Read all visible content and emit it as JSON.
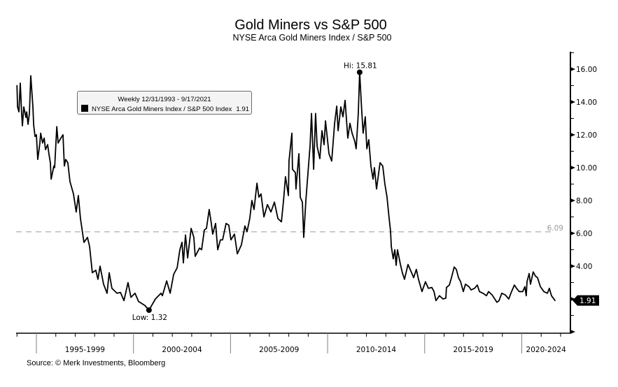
{
  "legend": {
    "period": "Weekly 12/31/1993 - 9/17/2021",
    "series_label": "NYSE Arca Gold Miners Index / S&P 500 Index",
    "series_value": "1.91"
  },
  "footer": {
    "source": "Source: © Merk Investments, Bloomberg"
  },
  "colors": {
    "series": "#000000",
    "reference_line": "#9a9a9a",
    "period_separator": "#808080",
    "last_value_tag": "#000000"
  },
  "chart_data": {
    "type": "line",
    "title": "Gold Miners vs S&P 500",
    "subtitle": "NYSE Arca Gold Miners Index / S&P 500",
    "xlabel": "",
    "ylabel": "",
    "y_axis_side": "right",
    "grid": false,
    "legend_position": "top-left",
    "x_range": [
      1993.95,
      2022.5
    ],
    "ylim": [
      0,
      17
    ],
    "y_tick_values": [
      4,
      6,
      8,
      10,
      12,
      14,
      16
    ],
    "y_tick_labels": [
      "4.00",
      "6.00",
      "8.00",
      "10.00",
      "12.00",
      "14.00",
      "16.00"
    ],
    "x_periods": [
      {
        "label": "1995-1999",
        "start": 1995,
        "end": 2000
      },
      {
        "label": "2000-2004",
        "start": 2000,
        "end": 2005
      },
      {
        "label": "2005-2009",
        "start": 2005,
        "end": 2010
      },
      {
        "label": "2010-2014",
        "start": 2010,
        "end": 2015
      },
      {
        "label": "2015-2019",
        "start": 2015,
        "end": 2020
      },
      {
        "label": "2020-2024",
        "start": 2020,
        "end": 2025
      }
    ],
    "reference_line": {
      "value": 6.09,
      "label": "6.09",
      "style": "dashed"
    },
    "annotations": [
      {
        "kind": "high",
        "label": "Hi: 15.81",
        "x": 2011.65,
        "y": 15.81
      },
      {
        "kind": "low",
        "label": "Low: 1.32",
        "x": 2000.8,
        "y": 1.32
      }
    ],
    "last_value": {
      "value": 1.91,
      "label": "1.91"
    },
    "series": [
      {
        "name": "NYSE Arca Gold Miners Index / S&P 500 Index",
        "x": [
          1994.0,
          1994.03,
          1994.1,
          1994.17,
          1994.24,
          1994.28,
          1994.35,
          1994.46,
          1994.5,
          1994.57,
          1994.64,
          1994.71,
          1994.82,
          1994.86,
          1994.93,
          1995.0,
          1995.07,
          1995.18,
          1995.22,
          1995.32,
          1995.4,
          1995.47,
          1995.58,
          1995.65,
          1995.72,
          1995.76,
          1995.9,
          1995.94,
          1996.05,
          1996.12,
          1996.26,
          1996.37,
          1996.44,
          1996.51,
          1996.62,
          1996.73,
          1996.91,
          1997.05,
          1997.16,
          1997.27,
          1997.45,
          1997.63,
          1997.74,
          1997.88,
          1998.06,
          1998.17,
          1998.28,
          1998.46,
          1998.64,
          1998.75,
          1998.89,
          1999.15,
          1999.33,
          1999.51,
          1999.72,
          1999.87,
          2000.08,
          2000.26,
          2000.59,
          2000.8,
          2001.13,
          2001.42,
          2001.49,
          2001.71,
          2001.89,
          2002.07,
          2002.25,
          2002.39,
          2002.5,
          2002.57,
          2002.68,
          2002.79,
          2002.97,
          2003.11,
          2003.18,
          2003.4,
          2003.51,
          2003.65,
          2003.76,
          2003.9,
          2004.01,
          2004.08,
          2004.23,
          2004.34,
          2004.48,
          2004.59,
          2004.77,
          2004.91,
          2005.02,
          2005.2,
          2005.35,
          2005.56,
          2005.74,
          2005.85,
          2005.99,
          2006.1,
          2006.21,
          2006.36,
          2006.46,
          2006.57,
          2006.72,
          2006.9,
          2007.08,
          2007.26,
          2007.44,
          2007.62,
          2007.73,
          2007.83,
          2007.98,
          2008.01,
          2008.16,
          2008.19,
          2008.34,
          2008.37,
          2008.52,
          2008.59,
          2008.7,
          2008.77,
          2008.88,
          2008.99,
          2009.1,
          2009.17,
          2009.28,
          2009.38,
          2009.46,
          2009.6,
          2009.71,
          2009.82,
          2009.89,
          2010.07,
          2010.21,
          2010.36,
          2010.47,
          2010.54,
          2010.68,
          2010.79,
          2010.9,
          2011.04,
          2011.15,
          2011.26,
          2011.4,
          2011.47,
          2011.58,
          2011.65,
          2011.76,
          2011.83,
          2011.94,
          2012.02,
          2012.12,
          2012.23,
          2012.34,
          2012.41,
          2012.52,
          2012.7,
          2012.84,
          2012.95,
          2013.06,
          2013.17,
          2013.24,
          2013.28,
          2013.38,
          2013.46,
          2013.53,
          2013.6,
          2013.75,
          2013.85,
          2013.96,
          2014.14,
          2014.29,
          2014.43,
          2014.57,
          2014.68,
          2014.86,
          2015.04,
          2015.19,
          2015.37,
          2015.48,
          2015.58,
          2015.76,
          2015.94,
          2016.09,
          2016.12,
          2016.27,
          2016.38,
          2016.52,
          2016.63,
          2016.74,
          2016.85,
          2016.99,
          2017.1,
          2017.28,
          2017.39,
          2017.57,
          2017.71,
          2017.82,
          2018.0,
          2018.18,
          2018.29,
          2018.47,
          2018.61,
          2018.72,
          2018.83,
          2018.97,
          2019.15,
          2019.33,
          2019.44,
          2019.62,
          2019.73,
          2019.87,
          2020.05,
          2020.16,
          2020.23,
          2020.27,
          2020.38,
          2020.45,
          2020.59,
          2020.7,
          2020.81,
          2020.96,
          2021.14,
          2021.32,
          2021.42,
          2021.53,
          2021.71
        ],
        "y": [
          15.0,
          13.7,
          13.4,
          15.15,
          13.3,
          12.55,
          13.7,
          13.06,
          13.4,
          12.64,
          13.3,
          15.6,
          13.7,
          12.6,
          11.9,
          12.0,
          10.5,
          11.5,
          12.1,
          11.5,
          11.8,
          11.1,
          11.4,
          10.8,
          10.3,
          9.3,
          10.1,
          10.0,
          12.5,
          11.5,
          11.8,
          12.0,
          10.1,
          10.5,
          10.3,
          9.15,
          8.4,
          7.3,
          8.3,
          6.9,
          5.45,
          5.75,
          5.2,
          3.6,
          3.75,
          3.2,
          4.0,
          2.9,
          2.35,
          3.6,
          2.65,
          2.35,
          2.4,
          1.9,
          3.0,
          2.1,
          2.35,
          1.85,
          1.6,
          1.32,
          2.0,
          2.35,
          2.2,
          3.1,
          2.35,
          3.5,
          3.9,
          5.0,
          5.45,
          4.2,
          5.9,
          4.5,
          6.3,
          5.75,
          4.6,
          5.1,
          5.0,
          6.2,
          6.3,
          7.45,
          6.6,
          5.95,
          6.6,
          5.0,
          5.6,
          5.6,
          6.6,
          6.5,
          5.6,
          5.95,
          4.75,
          5.3,
          6.45,
          6.1,
          6.9,
          8.0,
          7.45,
          9.05,
          8.2,
          8.4,
          7.0,
          7.75,
          7.3,
          7.9,
          6.9,
          6.7,
          8.0,
          9.45,
          8.3,
          10.4,
          12.1,
          9.9,
          9.7,
          8.7,
          10.85,
          8.2,
          7.9,
          5.75,
          8.0,
          9.7,
          11.4,
          13.3,
          9.9,
          13.3,
          11.3,
          10.55,
          12.25,
          11.4,
          12.85,
          10.85,
          10.4,
          12.7,
          13.75,
          12.25,
          13.7,
          13.1,
          14.1,
          11.8,
          12.7,
          12.1,
          11.6,
          11.15,
          13.3,
          15.81,
          13.4,
          12.1,
          13.1,
          11.15,
          11.7,
          10.1,
          9.3,
          10.0,
          8.7,
          10.3,
          10.1,
          9.0,
          8.2,
          6.9,
          6.15,
          5.2,
          4.45,
          5.0,
          4.05,
          5.0,
          4.1,
          3.6,
          3.2,
          4.1,
          3.7,
          3.3,
          3.8,
          3.2,
          2.45,
          3.05,
          2.65,
          2.7,
          2.45,
          1.9,
          2.2,
          2.0,
          2.05,
          2.7,
          2.85,
          3.3,
          3.95,
          3.8,
          3.3,
          3.05,
          2.45,
          2.9,
          2.75,
          2.55,
          2.65,
          2.85,
          2.45,
          2.35,
          2.2,
          2.45,
          2.25,
          2.0,
          1.8,
          1.9,
          2.35,
          2.25,
          2.0,
          2.35,
          2.85,
          2.65,
          2.45,
          2.45,
          2.75,
          2.2,
          3.05,
          3.55,
          2.9,
          3.65,
          3.4,
          3.3,
          2.75,
          2.45,
          2.35,
          2.65,
          2.2,
          1.91
        ]
      }
    ]
  }
}
